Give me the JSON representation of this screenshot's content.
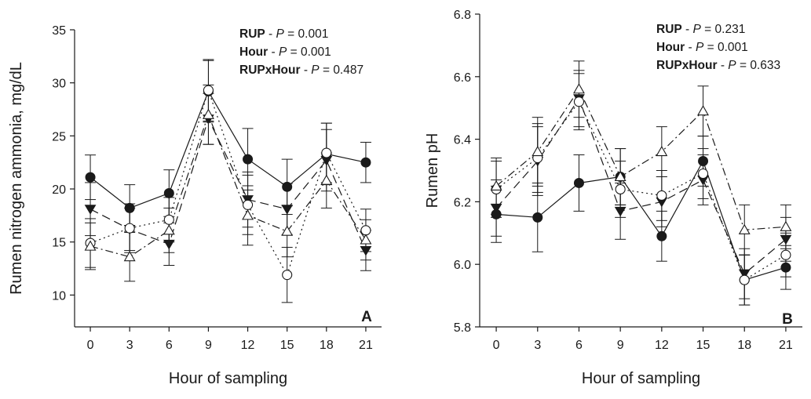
{
  "chart_data": [
    {
      "type": "line",
      "panel_label": "A",
      "xlabel": "Hour of sampling",
      "ylabel": "Rumen nitrogen ammonia, mg/dL",
      "x": [
        0,
        3,
        6,
        9,
        12,
        15,
        18,
        21
      ],
      "x_tick_labels": [
        "0",
        "3",
        "6",
        "9",
        "12",
        "15",
        "18",
        "21"
      ],
      "ylim": [
        7,
        35
      ],
      "y_ticks": [
        10,
        15,
        20,
        25,
        30,
        35
      ],
      "y_tick_labels": [
        "10",
        "15",
        "20",
        "25",
        "30",
        "35"
      ],
      "grid": false,
      "legend": "none",
      "stats": [
        {
          "term": "RUP",
          "p_label": "P",
          "value": "0.001"
        },
        {
          "term": "Hour",
          "p_label": "P",
          "value": "0.001"
        },
        {
          "term": "RUPxHour",
          "p_label": "P",
          "value": "0.487"
        }
      ],
      "series": [
        {
          "marker": "filled-circle",
          "line": "solid",
          "values": [
            21.1,
            18.2,
            19.6,
            29.2,
            22.8,
            20.2,
            23.3,
            22.5
          ],
          "error": [
            2.1,
            2.2,
            2.2,
            2.9,
            2.9,
            2.6,
            2.9,
            1.9
          ]
        },
        {
          "marker": "filled-triangle-down",
          "line": "long-dash",
          "values": [
            18.1,
            16.2,
            14.8,
            26.6,
            19.0,
            18.1,
            22.7,
            14.2
          ],
          "error": [
            2.5,
            2.0,
            2.0,
            2.4,
            2.6,
            2.4,
            2.9,
            1.9
          ]
        },
        {
          "marker": "open-circle",
          "line": "dotted",
          "values": [
            14.9,
            16.3,
            17.1,
            29.3,
            18.5,
            11.9,
            23.4,
            16.1
          ],
          "error": [
            2.3,
            2.3,
            2.1,
            2.9,
            2.8,
            2.6,
            2.8,
            2.0
          ]
        },
        {
          "marker": "open-triangle-up",
          "line": "dash-dot",
          "values": [
            14.6,
            13.6,
            16.1,
            27.0,
            17.5,
            16.0,
            20.8,
            15.2
          ],
          "error": [
            2.2,
            2.3,
            2.1,
            2.8,
            2.8,
            2.4,
            2.6,
            1.9
          ]
        }
      ]
    },
    {
      "type": "line",
      "panel_label": "B",
      "xlabel": "Hour of sampling",
      "ylabel": "Rumen pH",
      "x": [
        0,
        3,
        6,
        9,
        12,
        15,
        18,
        21
      ],
      "x_tick_labels": [
        "0",
        "3",
        "6",
        "9",
        "12",
        "15",
        "18",
        "21"
      ],
      "ylim": [
        5.8,
        6.8
      ],
      "y_ticks": [
        5.8,
        6.0,
        6.2,
        6.4,
        6.6,
        6.8
      ],
      "y_tick_labels": [
        "5.8",
        "6.0",
        "6.2",
        "6.4",
        "6.6",
        "6.8"
      ],
      "grid": false,
      "legend": "none",
      "stats": [
        {
          "term": "RUP",
          "p_label": "P",
          "value": "0.231"
        },
        {
          "term": "Hour",
          "p_label": "P",
          "value": "0.001"
        },
        {
          "term": "RUPxHour",
          "p_label": "P",
          "value": "0.633"
        }
      ],
      "series": [
        {
          "marker": "filled-circle",
          "line": "solid",
          "values": [
            6.16,
            6.15,
            6.26,
            6.28,
            6.09,
            6.33,
            5.95,
            5.99
          ],
          "error": [
            0.09,
            0.11,
            0.09,
            0.09,
            0.08,
            0.08,
            0.08,
            0.07
          ]
        },
        {
          "marker": "filled-triangle-down",
          "line": "long-dash",
          "values": [
            6.18,
            6.33,
            6.53,
            6.17,
            6.2,
            6.27,
            5.97,
            6.08
          ],
          "error": [
            0.09,
            0.11,
            0.09,
            0.09,
            0.08,
            0.08,
            0.08,
            0.07
          ]
        },
        {
          "marker": "open-circle",
          "line": "dotted",
          "values": [
            6.24,
            6.34,
            6.52,
            6.24,
            6.22,
            6.29,
            5.95,
            6.03
          ],
          "error": [
            0.09,
            0.11,
            0.09,
            0.09,
            0.08,
            0.08,
            0.08,
            0.07
          ]
        },
        {
          "marker": "open-triangle-up",
          "line": "dash-dot",
          "values": [
            6.25,
            6.36,
            6.56,
            6.28,
            6.36,
            6.49,
            6.11,
            6.12
          ],
          "error": [
            0.09,
            0.11,
            0.09,
            0.09,
            0.08,
            0.08,
            0.08,
            0.07
          ]
        }
      ]
    }
  ]
}
